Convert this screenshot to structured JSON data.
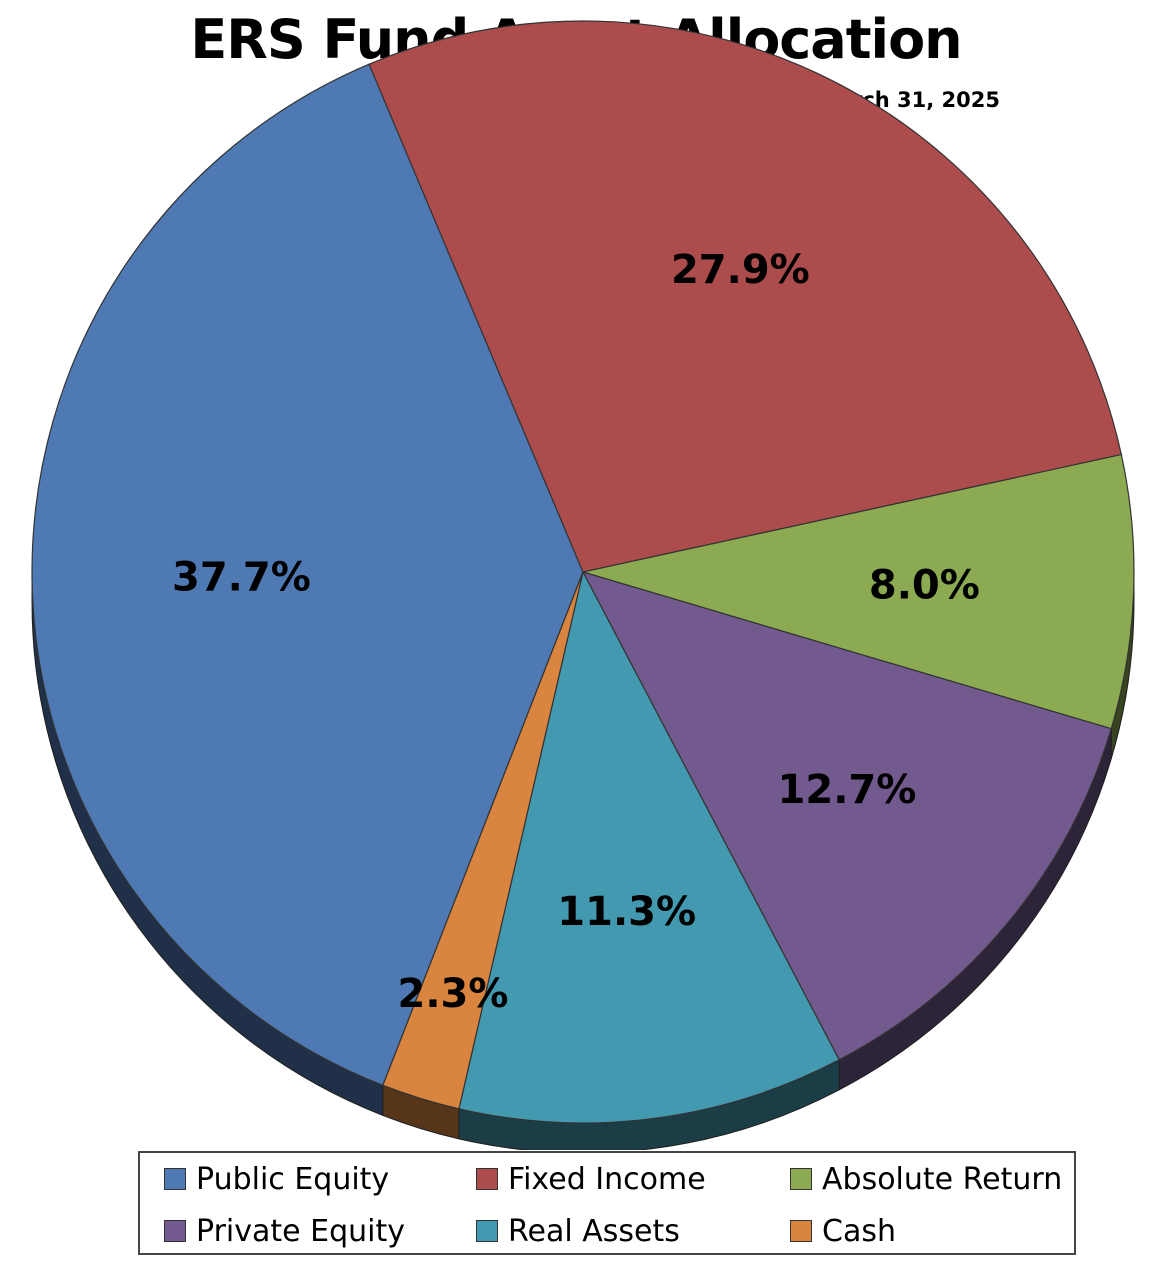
{
  "chart_data": {
    "type": "pie",
    "title": "ERS Fund Asset Allocation",
    "subtitle": "March 31, 2025",
    "slices": [
      {
        "name": "Public Equity",
        "value": 37.7,
        "label": "37.7%",
        "color": "#4E79B3"
      },
      {
        "name": "Fixed Income",
        "value": 27.9,
        "label": "27.9%",
        "color": "#AC4C4C"
      },
      {
        "name": "Absolute Return",
        "value": 8.0,
        "label": "8.0%",
        "color": "#8BAA52"
      },
      {
        "name": "Private Equity",
        "value": 12.7,
        "label": "12.7%",
        "color": "#72598E"
      },
      {
        "name": "Real Assets",
        "value": 11.3,
        "label": "11.3%",
        "color": "#4399AF"
      },
      {
        "name": "Cash",
        "value": 2.3,
        "label": "2.3%",
        "color": "#D9843F"
      }
    ],
    "legend_position": "bottom"
  }
}
